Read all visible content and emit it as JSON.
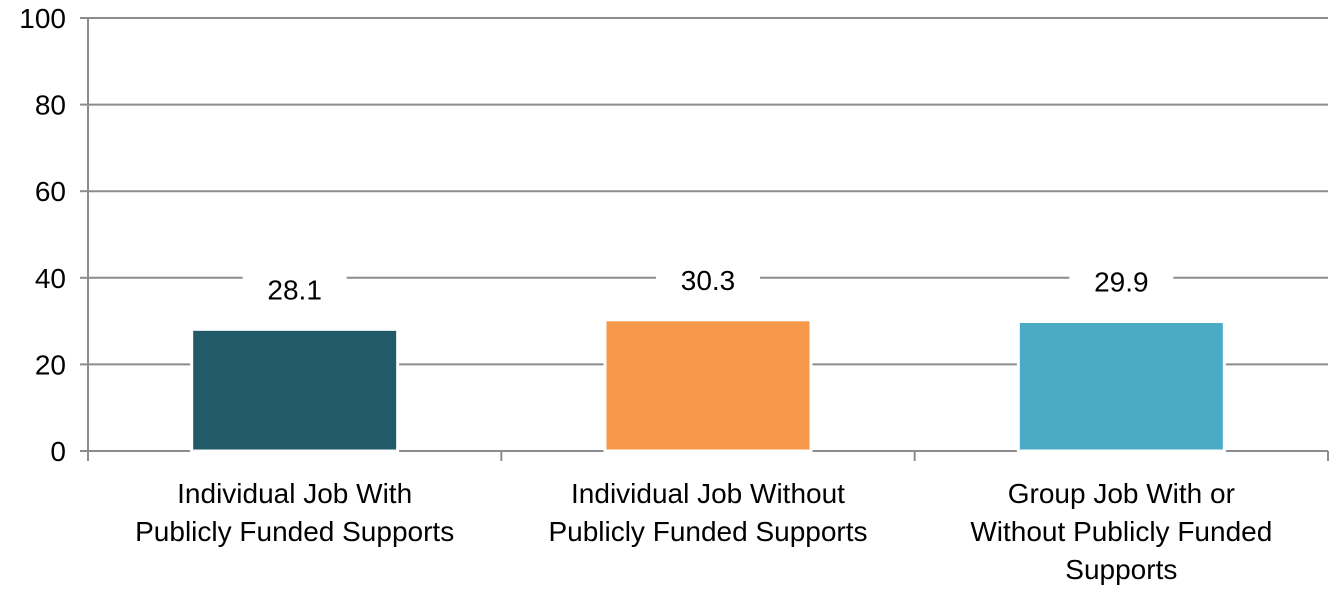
{
  "chart_data": {
    "type": "bar",
    "categories": [
      [
        "Individual Job With",
        "Publicly Funded Supports"
      ],
      [
        "Individual Job Without",
        "Publicly Funded Supports"
      ],
      [
        "Group Job With or",
        "Without Publicly Funded",
        "Supports"
      ]
    ],
    "values": [
      28.1,
      30.3,
      29.9
    ],
    "value_labels": [
      "28.1",
      "30.3",
      "29.9"
    ],
    "colors": [
      "#235a69",
      "#f5984a",
      "#4babc6"
    ],
    "ylim": [
      0,
      100
    ],
    "yticks": [
      0,
      20,
      40,
      60,
      80,
      100
    ],
    "ytick_labels": [
      "0",
      "20",
      "40",
      "60",
      "80",
      "100"
    ],
    "grid": true,
    "legend": "none",
    "title": "",
    "xlabel": "",
    "ylabel": ""
  }
}
